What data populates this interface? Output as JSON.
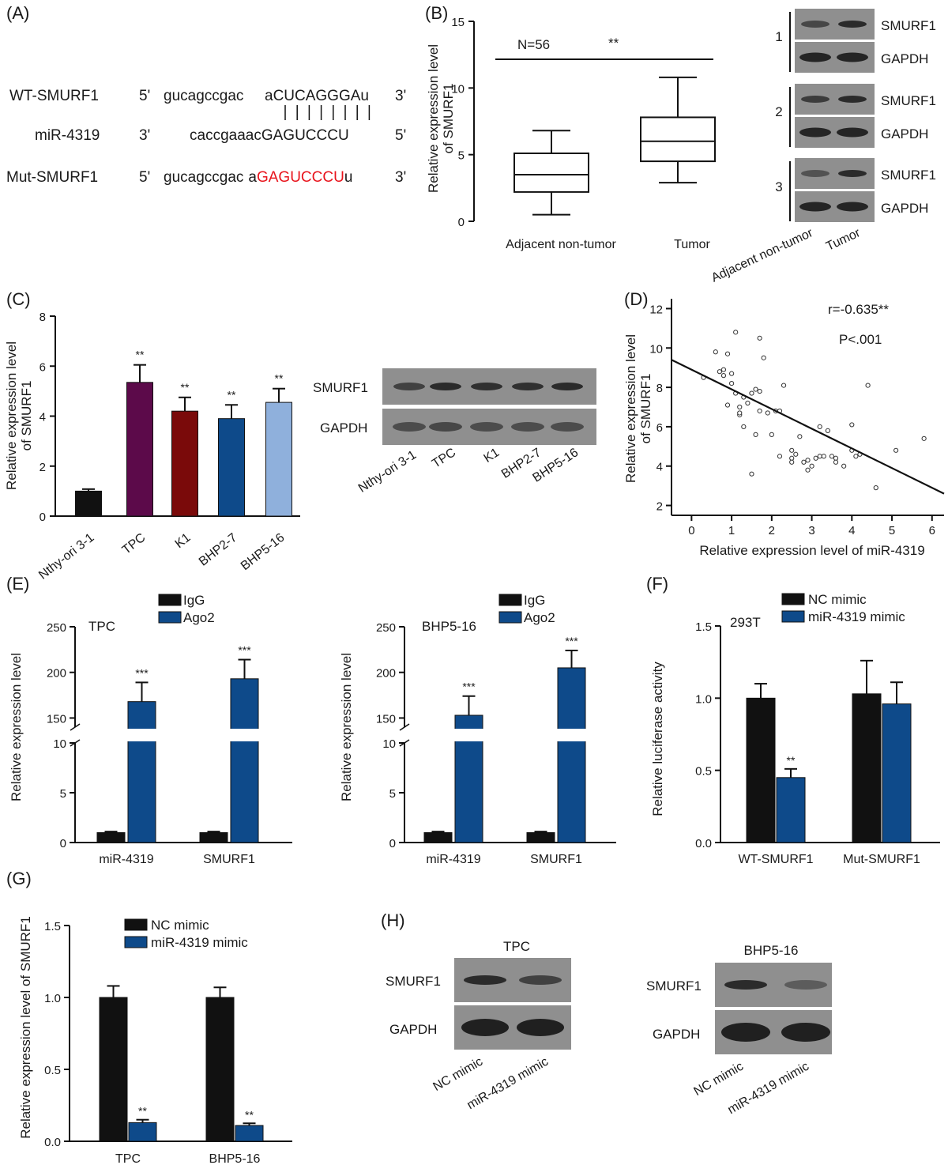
{
  "chart_data": [
    {
      "panel": "(A)",
      "type": "table",
      "rows": [
        {
          "label": "WT-SMURF1",
          "end5": "5'",
          "seq_prefix": "gucagccgac",
          "seq_body": "aCUCAGGGAu",
          "seq_highlight": "",
          "seq_suffix": "",
          "end3": "3'"
        },
        {
          "label": "miR-4319",
          "end5": "3'",
          "seq_prefix": "",
          "seq_body": "caccgaaacGAGUCCCU",
          "seq_highlight": "",
          "seq_suffix": "",
          "end3": "5'"
        },
        {
          "label": "Mut-SMURF1",
          "end5": "5'",
          "seq_prefix": "gucagccgac",
          "seq_body": "a",
          "seq_highlight": "GAGUCCCU",
          "seq_suffix": "u",
          "end3": "3'"
        }
      ],
      "pair_lines": 8,
      "highlight_color": "#e8141c"
    },
    {
      "panel": "(B)",
      "type": "box",
      "categories": [
        "Adjacent non-tumor",
        "Tumor"
      ],
      "boxes": [
        {
          "min": 0.5,
          "q1": 2.2,
          "median": 3.5,
          "q3": 5.1,
          "max": 6.8
        },
        {
          "min": 2.9,
          "q1": 4.5,
          "median": 6.0,
          "q3": 7.8,
          "max": 10.8
        }
      ],
      "ylabel": "Relative expression level of SMURF1",
      "ylim": [
        0,
        15
      ],
      "yticks": [
        0,
        5,
        10,
        15
      ],
      "annotation_n": "N=56",
      "annotation_sig": "**"
    },
    {
      "panel": "(C)",
      "type": "bar",
      "categories": [
        "Nthy-ori 3-1",
        "TPC",
        "K1",
        "BHP2-7",
        "BHP5-16"
      ],
      "values": [
        1.0,
        5.35,
        4.2,
        3.9,
        4.55
      ],
      "errors": [
        0.08,
        0.7,
        0.55,
        0.55,
        0.55
      ],
      "colors": [
        "#111111",
        "#5c0a4a",
        "#7a0a0a",
        "#0e4a8a",
        "#8fb0dc"
      ],
      "stars": [
        "",
        "**",
        "**",
        "**",
        "**"
      ],
      "ylabel": "Relative expression level of SMURF1",
      "ylim": [
        0,
        8
      ],
      "yticks": [
        0,
        2,
        4,
        6,
        8
      ]
    },
    {
      "panel": "(D)",
      "type": "scatter",
      "x": [
        0.3,
        0.6,
        0.7,
        0.8,
        0.8,
        0.9,
        0.9,
        1.0,
        1.0,
        1.1,
        1.1,
        1.2,
        1.2,
        1.2,
        1.3,
        1.3,
        1.4,
        1.5,
        1.5,
        1.6,
        1.6,
        1.7,
        1.7,
        1.7,
        1.8,
        1.9,
        2.0,
        2.1,
        2.2,
        2.2,
        2.3,
        2.5,
        2.5,
        2.5,
        2.6,
        2.7,
        2.8,
        2.9,
        2.9,
        3.0,
        3.1,
        3.2,
        3.2,
        3.3,
        3.4,
        3.5,
        3.6,
        3.6,
        3.8,
        4.0,
        4.0,
        4.1,
        4.2,
        4.4,
        4.6,
        5.1,
        5.8
      ],
      "y": [
        8.5,
        9.8,
        8.8,
        8.9,
        8.6,
        7.1,
        9.7,
        8.2,
        8.7,
        10.8,
        7.7,
        7.0,
        6.6,
        6.7,
        7.5,
        6.0,
        7.2,
        3.6,
        7.7,
        7.9,
        5.6,
        10.5,
        7.8,
        6.8,
        9.5,
        6.7,
        5.6,
        6.8,
        6.8,
        4.5,
        8.1,
        4.4,
        4.8,
        4.2,
        4.6,
        5.5,
        4.2,
        3.8,
        4.3,
        4.0,
        4.4,
        4.5,
        6.0,
        4.5,
        5.8,
        4.5,
        4.4,
        4.2,
        4.0,
        4.8,
        6.1,
        4.5,
        4.6,
        8.1,
        2.9,
        4.8,
        5.4
      ],
      "fit_line": {
        "slope": -1.0,
        "intercept": 8.9
      },
      "xlabel": "Relative expression level of miR-4319",
      "ylabel": "Relative expression level of SMURF1",
      "xlim": [
        -0.5,
        6.3
      ],
      "ylim": [
        1.5,
        12.5
      ],
      "xticks": [
        0,
        1,
        2,
        3,
        4,
        5,
        6
      ],
      "yticks": [
        2,
        4,
        6,
        8,
        10,
        12
      ],
      "annotation_r": "r=-0.635**",
      "annotation_p": "P<.001"
    },
    {
      "panel": "(E)",
      "type": "bar",
      "subtitle": "TPC",
      "categories": [
        "miR-4319",
        "SMURF1"
      ],
      "series": [
        {
          "name": "IgG",
          "values": [
            1.0,
            1.0
          ],
          "errors": [
            0.1,
            0.1
          ],
          "color": "#111111"
        },
        {
          "name": "Ago2",
          "values": [
            168,
            193
          ],
          "errors": [
            21,
            21
          ],
          "color": "#0e4a8a"
        }
      ],
      "stars": [
        "***",
        "***"
      ],
      "ylabel": "Relative expression level",
      "axis_break": [
        10,
        140
      ],
      "yticks": [
        0,
        5,
        10,
        150,
        200,
        250
      ]
    },
    {
      "panel": "",
      "type": "bar",
      "subtitle": "BHP5-16",
      "categories": [
        "miR-4319",
        "SMURF1"
      ],
      "series": [
        {
          "name": "IgG",
          "values": [
            1.0,
            1.0
          ],
          "errors": [
            0.1,
            0.1
          ],
          "color": "#111111"
        },
        {
          "name": "Ago2",
          "values": [
            153,
            205
          ],
          "errors": [
            21,
            19
          ],
          "color": "#0e4a8a"
        }
      ],
      "stars": [
        "***",
        "***"
      ],
      "ylabel": "Relative expression level",
      "axis_break": [
        10,
        140
      ],
      "yticks": [
        0,
        5,
        10,
        150,
        200,
        250
      ]
    },
    {
      "panel": "(F)",
      "type": "bar",
      "subtitle": "293T",
      "categories": [
        "WT-SMURF1",
        "Mut-SMURF1"
      ],
      "series": [
        {
          "name": "NC mimic",
          "values": [
            1.0,
            1.03
          ],
          "errors": [
            0.1,
            0.23
          ],
          "color": "#111111"
        },
        {
          "name": "miR-4319 mimic",
          "values": [
            0.45,
            0.96
          ],
          "errors": [
            0.06,
            0.15
          ],
          "color": "#0e4a8a"
        }
      ],
      "stars": [
        "**",
        ""
      ],
      "ylabel": "Relative luciferase activity",
      "ylim": [
        0,
        1.5
      ],
      "yticks": [
        0.0,
        0.5,
        1.0,
        1.5
      ]
    },
    {
      "panel": "(G)",
      "type": "bar",
      "categories": [
        "TPC",
        "BHP5-16"
      ],
      "series": [
        {
          "name": "NC mimic",
          "values": [
            1.0,
            1.0
          ],
          "errors": [
            0.08,
            0.07
          ],
          "color": "#111111"
        },
        {
          "name": "miR-4319 mimic",
          "values": [
            0.13,
            0.11
          ],
          "errors": [
            0.02,
            0.015
          ],
          "color": "#0e4a8a"
        }
      ],
      "stars": [
        "**",
        "**"
      ],
      "ylabel": "Relative expression level of SMURF1",
      "ylim": [
        0,
        1.5
      ],
      "yticks": [
        0.0,
        0.5,
        1.0,
        1.5
      ]
    }
  ],
  "blots": {
    "B": {
      "bands": [
        "SMURF1",
        "GAPDH"
      ],
      "groups": [
        "1",
        "2",
        "3"
      ],
      "lanes": [
        "Adjacent non-tumor",
        "Tumor"
      ]
    },
    "C": {
      "bands": [
        "SMURF1",
        "GAPDH"
      ],
      "lanes": [
        "Nthy-ori 3-1",
        "TPC",
        "K1",
        "BHP2-7",
        "BHP5-16"
      ]
    },
    "H": {
      "panel": "(H)",
      "bands": [
        "SMURF1",
        "GAPDH"
      ],
      "lanes": [
        "NC mimic",
        "miR-4319 mimic"
      ],
      "cells": [
        "TPC",
        "BHP5-16"
      ]
    }
  }
}
